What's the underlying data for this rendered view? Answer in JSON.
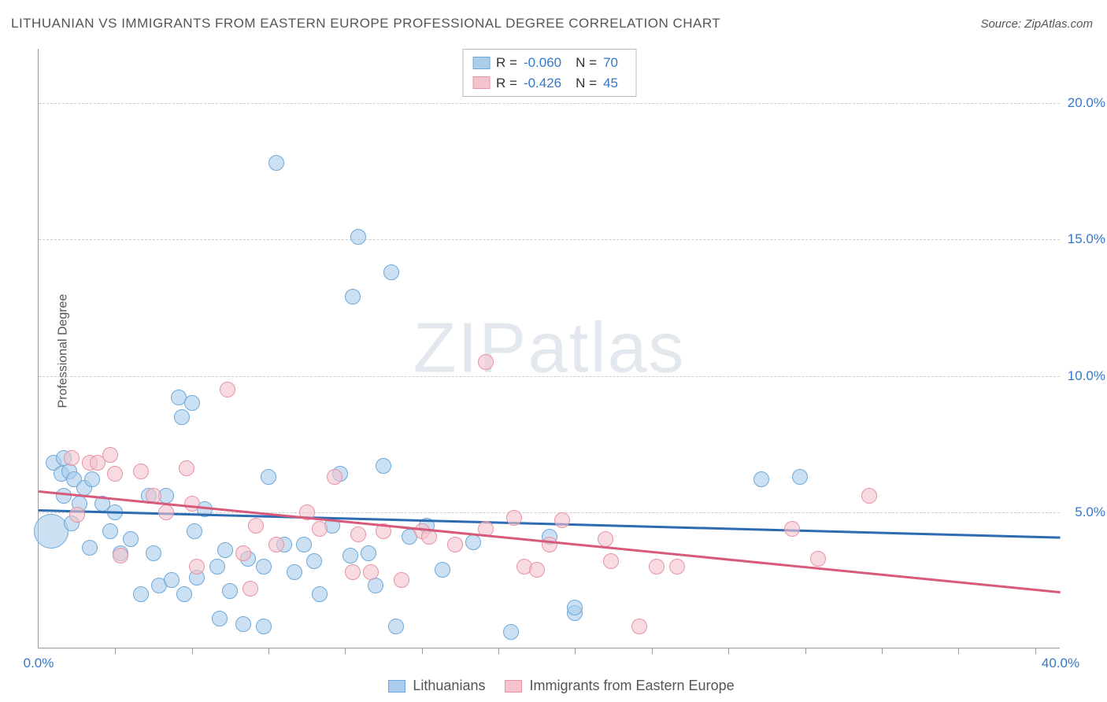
{
  "title": "LITHUANIAN VS IMMIGRANTS FROM EASTERN EUROPE PROFESSIONAL DEGREE CORRELATION CHART",
  "source": "Source: ZipAtlas.com",
  "ylabel": "Professional Degree",
  "watermark": "ZIPatlas",
  "chart": {
    "type": "scatter",
    "xlim": [
      0,
      40
    ],
    "ylim": [
      0,
      22
    ],
    "yticks": [
      {
        "v": 5,
        "label": "5.0%"
      },
      {
        "v": 10,
        "label": "10.0%"
      },
      {
        "v": 15,
        "label": "15.0%"
      },
      {
        "v": 20,
        "label": "20.0%"
      }
    ],
    "xticks_minor": [
      3,
      6,
      9,
      12,
      15,
      18,
      21,
      24,
      27,
      30,
      33,
      36,
      39
    ],
    "xticks": [
      {
        "v": 0,
        "label": "0.0%"
      },
      {
        "v": 40,
        "label": "40.0%"
      }
    ],
    "grid_color": "#cccccc",
    "background": "#ffffff",
    "series": [
      {
        "name": "Lithuanians",
        "fill": "#a9cdeb",
        "stroke": "#6fa8d8",
        "marker_border_width": 1.5,
        "trend_color": "#2d6bb3",
        "trend_y_at_x0": 5.1,
        "trend_y_at_xmax": 4.1,
        "R": "-0.060",
        "N": "70",
        "points": [
          {
            "x": 0.5,
            "y": 4.3,
            "r": 22
          },
          {
            "x": 0.6,
            "y": 6.8,
            "r": 10
          },
          {
            "x": 0.9,
            "y": 6.4,
            "r": 10
          },
          {
            "x": 1.0,
            "y": 7.0,
            "r": 10
          },
          {
            "x": 1.2,
            "y": 6.5,
            "r": 10
          },
          {
            "x": 1.0,
            "y": 5.6,
            "r": 10
          },
          {
            "x": 1.4,
            "y": 6.2,
            "r": 10
          },
          {
            "x": 1.6,
            "y": 5.3,
            "r": 10
          },
          {
            "x": 1.3,
            "y": 4.6,
            "r": 10
          },
          {
            "x": 1.8,
            "y": 5.9,
            "r": 10
          },
          {
            "x": 2.1,
            "y": 6.2,
            "r": 10
          },
          {
            "x": 2.5,
            "y": 5.3,
            "r": 10
          },
          {
            "x": 2.0,
            "y": 3.7,
            "r": 10
          },
          {
            "x": 2.8,
            "y": 4.3,
            "r": 10
          },
          {
            "x": 3.2,
            "y": 3.5,
            "r": 10
          },
          {
            "x": 3.0,
            "y": 5.0,
            "r": 10
          },
          {
            "x": 3.6,
            "y": 4.0,
            "r": 10
          },
          {
            "x": 4.0,
            "y": 2.0,
            "r": 10
          },
          {
            "x": 4.5,
            "y": 3.5,
            "r": 10
          },
          {
            "x": 4.7,
            "y": 2.3,
            "r": 10
          },
          {
            "x": 4.3,
            "y": 5.6,
            "r": 10
          },
          {
            "x": 5.2,
            "y": 2.5,
            "r": 10
          },
          {
            "x": 5.0,
            "y": 5.6,
            "r": 10
          },
          {
            "x": 5.5,
            "y": 9.2,
            "r": 10
          },
          {
            "x": 5.6,
            "y": 8.5,
            "r": 10
          },
          {
            "x": 5.7,
            "y": 2.0,
            "r": 10
          },
          {
            "x": 6.2,
            "y": 2.6,
            "r": 10
          },
          {
            "x": 6.0,
            "y": 9.0,
            "r": 10
          },
          {
            "x": 6.1,
            "y": 4.3,
            "r": 10
          },
          {
            "x": 6.5,
            "y": 5.1,
            "r": 10
          },
          {
            "x": 7.0,
            "y": 3.0,
            "r": 10
          },
          {
            "x": 7.1,
            "y": 1.1,
            "r": 10
          },
          {
            "x": 7.5,
            "y": 2.1,
            "r": 10
          },
          {
            "x": 7.3,
            "y": 3.6,
            "r": 10
          },
          {
            "x": 8.0,
            "y": 0.9,
            "r": 10
          },
          {
            "x": 8.2,
            "y": 3.3,
            "r": 10
          },
          {
            "x": 8.8,
            "y": 0.8,
            "r": 10
          },
          {
            "x": 8.8,
            "y": 3.0,
            "r": 10
          },
          {
            "x": 9.3,
            "y": 17.8,
            "r": 10
          },
          {
            "x": 9.0,
            "y": 6.3,
            "r": 10
          },
          {
            "x": 9.6,
            "y": 3.8,
            "r": 10
          },
          {
            "x": 10.0,
            "y": 2.8,
            "r": 10
          },
          {
            "x": 10.4,
            "y": 3.8,
            "r": 10
          },
          {
            "x": 10.8,
            "y": 3.2,
            "r": 10
          },
          {
            "x": 11.0,
            "y": 2.0,
            "r": 10
          },
          {
            "x": 11.5,
            "y": 4.5,
            "r": 10
          },
          {
            "x": 11.8,
            "y": 6.4,
            "r": 10
          },
          {
            "x": 12.2,
            "y": 3.4,
            "r": 10
          },
          {
            "x": 12.3,
            "y": 12.9,
            "r": 10
          },
          {
            "x": 12.5,
            "y": 15.1,
            "r": 10
          },
          {
            "x": 12.9,
            "y": 3.5,
            "r": 10
          },
          {
            "x": 13.2,
            "y": 2.3,
            "r": 10
          },
          {
            "x": 13.5,
            "y": 6.7,
            "r": 10
          },
          {
            "x": 13.8,
            "y": 13.8,
            "r": 10
          },
          {
            "x": 14.0,
            "y": 0.8,
            "r": 10
          },
          {
            "x": 14.5,
            "y": 4.1,
            "r": 10
          },
          {
            "x": 15.2,
            "y": 4.5,
            "r": 10
          },
          {
            "x": 15.8,
            "y": 2.9,
            "r": 10
          },
          {
            "x": 17.0,
            "y": 3.9,
            "r": 10
          },
          {
            "x": 18.5,
            "y": 0.6,
            "r": 10
          },
          {
            "x": 20.0,
            "y": 4.1,
            "r": 10
          },
          {
            "x": 21.0,
            "y": 1.3,
            "r": 10
          },
          {
            "x": 21.0,
            "y": 1.5,
            "r": 10
          },
          {
            "x": 28.3,
            "y": 6.2,
            "r": 10
          },
          {
            "x": 29.8,
            "y": 6.3,
            "r": 10
          }
        ]
      },
      {
        "name": "Immigrants from Eastern Europe",
        "fill": "#f4c3cd",
        "stroke": "#e694a6",
        "marker_border_width": 1.5,
        "trend_color": "#d85a7a",
        "trend_y_at_x0": 5.8,
        "trend_y_at_xmax": 2.1,
        "R": "-0.426",
        "N": "45",
        "points": [
          {
            "x": 1.3,
            "y": 7.0,
            "r": 10
          },
          {
            "x": 1.5,
            "y": 4.9,
            "r": 10
          },
          {
            "x": 2.0,
            "y": 6.8,
            "r": 10
          },
          {
            "x": 2.3,
            "y": 6.8,
            "r": 10
          },
          {
            "x": 2.8,
            "y": 7.1,
            "r": 10
          },
          {
            "x": 3.0,
            "y": 6.4,
            "r": 10
          },
          {
            "x": 3.2,
            "y": 3.4,
            "r": 10
          },
          {
            "x": 4.0,
            "y": 6.5,
            "r": 10
          },
          {
            "x": 4.5,
            "y": 5.6,
            "r": 10
          },
          {
            "x": 5.0,
            "y": 5.0,
            "r": 10
          },
          {
            "x": 5.8,
            "y": 6.6,
            "r": 10
          },
          {
            "x": 6.0,
            "y": 5.3,
            "r": 10
          },
          {
            "x": 6.2,
            "y": 3.0,
            "r": 10
          },
          {
            "x": 7.4,
            "y": 9.5,
            "r": 10
          },
          {
            "x": 8.0,
            "y": 3.5,
            "r": 10
          },
          {
            "x": 8.3,
            "y": 2.2,
            "r": 10
          },
          {
            "x": 8.5,
            "y": 4.5,
            "r": 10
          },
          {
            "x": 9.3,
            "y": 3.8,
            "r": 10
          },
          {
            "x": 10.5,
            "y": 5.0,
            "r": 10
          },
          {
            "x": 11.0,
            "y": 4.4,
            "r": 10
          },
          {
            "x": 11.6,
            "y": 6.3,
            "r": 10
          },
          {
            "x": 12.3,
            "y": 2.8,
            "r": 10
          },
          {
            "x": 12.5,
            "y": 4.2,
            "r": 10
          },
          {
            "x": 13.0,
            "y": 2.8,
            "r": 10
          },
          {
            "x": 13.5,
            "y": 4.3,
            "r": 10
          },
          {
            "x": 14.2,
            "y": 2.5,
            "r": 10
          },
          {
            "x": 15.0,
            "y": 4.3,
            "r": 10
          },
          {
            "x": 15.3,
            "y": 4.1,
            "r": 10
          },
          {
            "x": 16.3,
            "y": 3.8,
            "r": 10
          },
          {
            "x": 17.5,
            "y": 4.4,
            "r": 10
          },
          {
            "x": 17.5,
            "y": 10.5,
            "r": 10
          },
          {
            "x": 18.6,
            "y": 4.8,
            "r": 10
          },
          {
            "x": 19.0,
            "y": 3.0,
            "r": 10
          },
          {
            "x": 19.5,
            "y": 2.9,
            "r": 10
          },
          {
            "x": 20.0,
            "y": 3.8,
            "r": 10
          },
          {
            "x": 20.5,
            "y": 4.7,
            "r": 10
          },
          {
            "x": 22.2,
            "y": 4.0,
            "r": 10
          },
          {
            "x": 22.4,
            "y": 3.2,
            "r": 10
          },
          {
            "x": 23.5,
            "y": 0.8,
            "r": 10
          },
          {
            "x": 24.2,
            "y": 3.0,
            "r": 10
          },
          {
            "x": 25.0,
            "y": 3.0,
            "r": 10
          },
          {
            "x": 29.5,
            "y": 4.4,
            "r": 10
          },
          {
            "x": 30.5,
            "y": 3.3,
            "r": 10
          },
          {
            "x": 32.5,
            "y": 5.6,
            "r": 10
          }
        ]
      }
    ]
  },
  "stats_labels": {
    "R": "R =",
    "N": "N ="
  },
  "legend": {
    "series1": "Lithuanians",
    "series2": "Immigrants from Eastern Europe"
  }
}
